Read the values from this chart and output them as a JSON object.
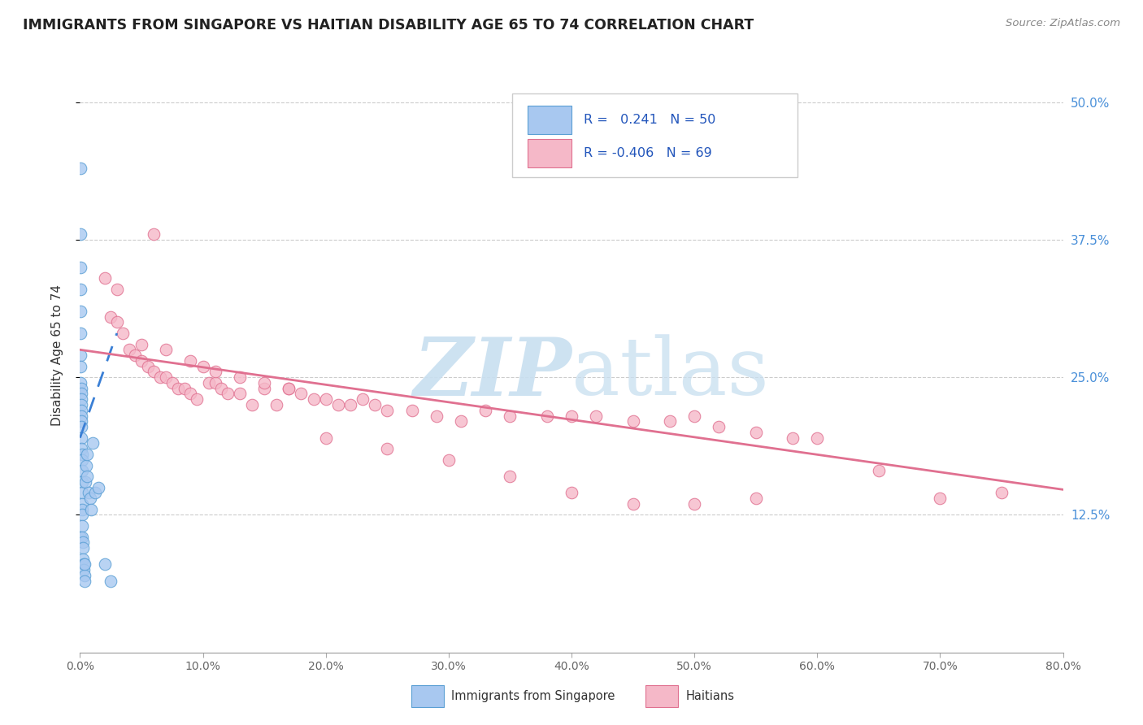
{
  "title": "IMMIGRANTS FROM SINGAPORE VS HAITIAN DISABILITY AGE 65 TO 74 CORRELATION CHART",
  "source": "Source: ZipAtlas.com",
  "ylabel": "Disability Age 65 to 74",
  "xlim": [
    0.0,
    0.8
  ],
  "ylim": [
    0.0,
    0.54
  ],
  "r_singapore": 0.241,
  "n_singapore": 50,
  "r_haitian": -0.406,
  "n_haitian": 69,
  "singapore_color": "#a8c8f0",
  "singapore_edge": "#5a9fd4",
  "haitian_color": "#f5b8c8",
  "haitian_edge": "#e07090",
  "sg_x": [
    0.0005,
    0.0005,
    0.0005,
    0.0005,
    0.0005,
    0.0005,
    0.0005,
    0.0005,
    0.0005,
    0.0005,
    0.001,
    0.001,
    0.001,
    0.001,
    0.001,
    0.001,
    0.001,
    0.001,
    0.001,
    0.001,
    0.0015,
    0.0015,
    0.0015,
    0.0015,
    0.0015,
    0.0015,
    0.002,
    0.002,
    0.002,
    0.002,
    0.0025,
    0.0025,
    0.0025,
    0.003,
    0.003,
    0.0035,
    0.0035,
    0.004,
    0.0045,
    0.005,
    0.0055,
    0.006,
    0.007,
    0.008,
    0.009,
    0.01,
    0.012,
    0.015,
    0.02,
    0.025
  ],
  "sg_y": [
    0.44,
    0.38,
    0.35,
    0.33,
    0.31,
    0.29,
    0.27,
    0.26,
    0.245,
    0.105,
    0.24,
    0.235,
    0.23,
    0.225,
    0.22,
    0.215,
    0.21,
    0.205,
    0.195,
    0.185,
    0.18,
    0.175,
    0.165,
    0.155,
    0.145,
    0.135,
    0.13,
    0.125,
    0.115,
    0.105,
    0.1,
    0.095,
    0.085,
    0.08,
    0.075,
    0.07,
    0.065,
    0.08,
    0.155,
    0.17,
    0.16,
    0.18,
    0.145,
    0.14,
    0.13,
    0.19,
    0.145,
    0.15,
    0.08,
    0.065
  ],
  "ht_x": [
    0.02,
    0.025,
    0.03,
    0.035,
    0.04,
    0.045,
    0.05,
    0.055,
    0.06,
    0.065,
    0.07,
    0.075,
    0.08,
    0.085,
    0.09,
    0.095,
    0.1,
    0.105,
    0.11,
    0.115,
    0.12,
    0.13,
    0.14,
    0.15,
    0.16,
    0.17,
    0.18,
    0.19,
    0.2,
    0.21,
    0.22,
    0.23,
    0.24,
    0.25,
    0.27,
    0.29,
    0.31,
    0.33,
    0.35,
    0.38,
    0.4,
    0.42,
    0.45,
    0.48,
    0.5,
    0.52,
    0.55,
    0.58,
    0.6,
    0.65,
    0.03,
    0.05,
    0.07,
    0.09,
    0.11,
    0.13,
    0.15,
    0.17,
    0.2,
    0.25,
    0.3,
    0.35,
    0.4,
    0.45,
    0.5,
    0.55,
    0.7,
    0.75,
    0.06
  ],
  "ht_y": [
    0.34,
    0.305,
    0.3,
    0.29,
    0.275,
    0.27,
    0.265,
    0.26,
    0.255,
    0.25,
    0.25,
    0.245,
    0.24,
    0.24,
    0.235,
    0.23,
    0.26,
    0.245,
    0.245,
    0.24,
    0.235,
    0.235,
    0.225,
    0.24,
    0.225,
    0.24,
    0.235,
    0.23,
    0.23,
    0.225,
    0.225,
    0.23,
    0.225,
    0.22,
    0.22,
    0.215,
    0.21,
    0.22,
    0.215,
    0.215,
    0.215,
    0.215,
    0.21,
    0.21,
    0.215,
    0.205,
    0.2,
    0.195,
    0.195,
    0.165,
    0.33,
    0.28,
    0.275,
    0.265,
    0.255,
    0.25,
    0.245,
    0.24,
    0.195,
    0.185,
    0.175,
    0.16,
    0.145,
    0.135,
    0.135,
    0.14,
    0.14,
    0.145,
    0.38
  ],
  "sg_line_x": [
    0.0,
    0.03
  ],
  "sg_line_y": [
    0.195,
    0.29
  ],
  "ht_line_x": [
    0.0,
    0.8
  ],
  "ht_line_y": [
    0.275,
    0.148
  ],
  "xticks": [
    0.0,
    0.1,
    0.2,
    0.3,
    0.4,
    0.5,
    0.6,
    0.7,
    0.8
  ],
  "yticks": [
    0.125,
    0.25,
    0.375,
    0.5
  ],
  "ytick_labels": [
    "12.5%",
    "25.0%",
    "37.5%",
    "50.0%"
  ]
}
